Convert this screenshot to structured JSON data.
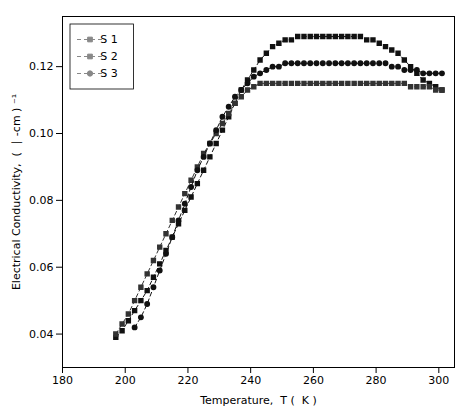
{
  "chart_data": {
    "type": "line",
    "xlabel": "Temperature,  T (  K )",
    "ylabel": "Electrical Conductivity,  (  ∣ -cm ) ⁻¹",
    "xlim": [
      180,
      305
    ],
    "ylim": [
      0.03,
      0.135
    ],
    "xticks": [
      180,
      200,
      220,
      240,
      260,
      280,
      300
    ],
    "yticks": [
      0.04,
      0.06,
      0.08,
      {
        "value": 0.1,
        "label": "0.10"
      },
      0.12
    ],
    "legend": "upper left",
    "series": [
      {
        "name": "S 1",
        "color": "#111111",
        "marker": "square",
        "line_style": "dashed",
        "x": [
          197,
          199,
          201,
          203,
          205,
          207,
          209,
          211,
          213,
          215,
          217,
          219,
          221,
          223,
          225,
          227,
          229,
          231,
          233,
          235,
          237,
          239,
          241,
          243,
          245,
          247,
          249,
          251,
          253,
          255,
          257,
          259,
          261,
          263,
          265,
          267,
          269,
          271,
          273,
          275,
          277,
          279,
          281,
          283,
          285,
          287,
          289,
          291,
          293,
          295,
          297,
          299,
          301
        ],
        "values": [
          0.039,
          0.041,
          0.044,
          0.047,
          0.05,
          0.053,
          0.057,
          0.061,
          0.065,
          0.069,
          0.073,
          0.077,
          0.081,
          0.085,
          0.089,
          0.093,
          0.097,
          0.101,
          0.105,
          0.109,
          0.113,
          0.116,
          0.119,
          0.122,
          0.124,
          0.126,
          0.127,
          0.128,
          0.128,
          0.129,
          0.129,
          0.129,
          0.129,
          0.129,
          0.129,
          0.129,
          0.129,
          0.129,
          0.129,
          0.129,
          0.128,
          0.128,
          0.127,
          0.126,
          0.125,
          0.124,
          0.122,
          0.12,
          0.118,
          0.116,
          0.115,
          0.114,
          0.113
        ]
      },
      {
        "name": "S 2",
        "color": "#333333",
        "marker": "square",
        "line_style": "dashed",
        "x": [
          197,
          199,
          201,
          203,
          205,
          207,
          209,
          211,
          213,
          215,
          217,
          219,
          221,
          223,
          225,
          227,
          229,
          231,
          233,
          235,
          237,
          239,
          241,
          243,
          245,
          247,
          249,
          251,
          253,
          255,
          257,
          259,
          261,
          263,
          265,
          267,
          269,
          271,
          273,
          275,
          277,
          279,
          281,
          283,
          285,
          287,
          289,
          291,
          293,
          295,
          297,
          299,
          301
        ],
        "values": [
          0.04,
          0.043,
          0.046,
          0.05,
          0.054,
          0.058,
          0.062,
          0.066,
          0.07,
          0.074,
          0.078,
          0.082,
          0.086,
          0.09,
          0.094,
          0.097,
          0.1,
          0.103,
          0.106,
          0.109,
          0.111,
          0.113,
          0.114,
          0.115,
          0.115,
          0.115,
          0.115,
          0.115,
          0.115,
          0.115,
          0.115,
          0.115,
          0.115,
          0.115,
          0.115,
          0.115,
          0.115,
          0.115,
          0.115,
          0.115,
          0.115,
          0.115,
          0.115,
          0.115,
          0.115,
          0.115,
          0.115,
          0.114,
          0.114,
          0.114,
          0.114,
          0.113,
          0.113
        ]
      },
      {
        "name": "S 3",
        "color": "#111111",
        "marker": "circle",
        "line_style": "dashed",
        "x": [
          203,
          205,
          207,
          209,
          211,
          213,
          215,
          217,
          219,
          221,
          223,
          225,
          227,
          229,
          231,
          233,
          235,
          237,
          239,
          241,
          243,
          245,
          247,
          249,
          251,
          253,
          255,
          257,
          259,
          261,
          263,
          265,
          267,
          269,
          271,
          273,
          275,
          277,
          279,
          281,
          283,
          285,
          287,
          289,
          291,
          293,
          295,
          297,
          299,
          301
        ],
        "values": [
          0.042,
          0.045,
          0.049,
          0.054,
          0.059,
          0.064,
          0.069,
          0.074,
          0.079,
          0.084,
          0.089,
          0.093,
          0.097,
          0.101,
          0.105,
          0.108,
          0.111,
          0.113,
          0.115,
          0.117,
          0.118,
          0.119,
          0.12,
          0.12,
          0.121,
          0.121,
          0.121,
          0.121,
          0.121,
          0.121,
          0.121,
          0.121,
          0.121,
          0.121,
          0.121,
          0.121,
          0.121,
          0.121,
          0.121,
          0.121,
          0.121,
          0.12,
          0.12,
          0.119,
          0.119,
          0.119,
          0.118,
          0.118,
          0.118,
          0.118
        ]
      }
    ]
  }
}
